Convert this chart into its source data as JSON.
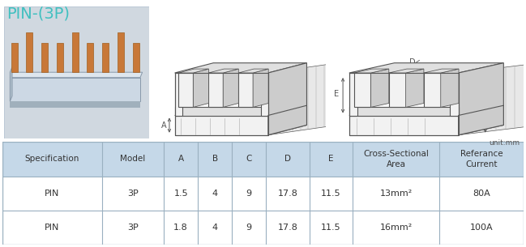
{
  "title": "PIN-(3P)",
  "title_color": "#40c0c0",
  "unit_text": "unit:mm",
  "background_color": "#ffffff",
  "table_header_bg": "#c5d8e8",
  "table_row_bg": "#ffffff",
  "table_border_color": "#9ab0c0",
  "headers": [
    "Specification",
    "Model",
    "A",
    "B",
    "C",
    "D",
    "E",
    "Cross-Sectional\nArea",
    "Referance\nCurrent"
  ],
  "rows": [
    [
      "PIN",
      "3P",
      "1.5",
      "4",
      "9",
      "17.8",
      "11.5",
      "13mm²",
      "80A"
    ],
    [
      "PIN",
      "3P",
      "1.8",
      "4",
      "9",
      "17.8",
      "11.5",
      "16mm²",
      "100A"
    ]
  ],
  "col_widths": [
    1.6,
    1.0,
    0.55,
    0.55,
    0.55,
    0.7,
    0.7,
    1.4,
    1.35
  ],
  "header_fontsize": 7.5,
  "row_fontsize": 8,
  "title_fontsize": 14,
  "lc": "#555555",
  "fc_light": "#f2f2f2",
  "fc_mid": "#e0e0e0",
  "fc_dark": "#cccccc",
  "fc_hatch": "#d8d8d8",
  "photo_bg": "#d0d8e0",
  "photo_bar": "#b8c8d4",
  "pin_color": "#c87838",
  "pin_edge": "#a06020"
}
